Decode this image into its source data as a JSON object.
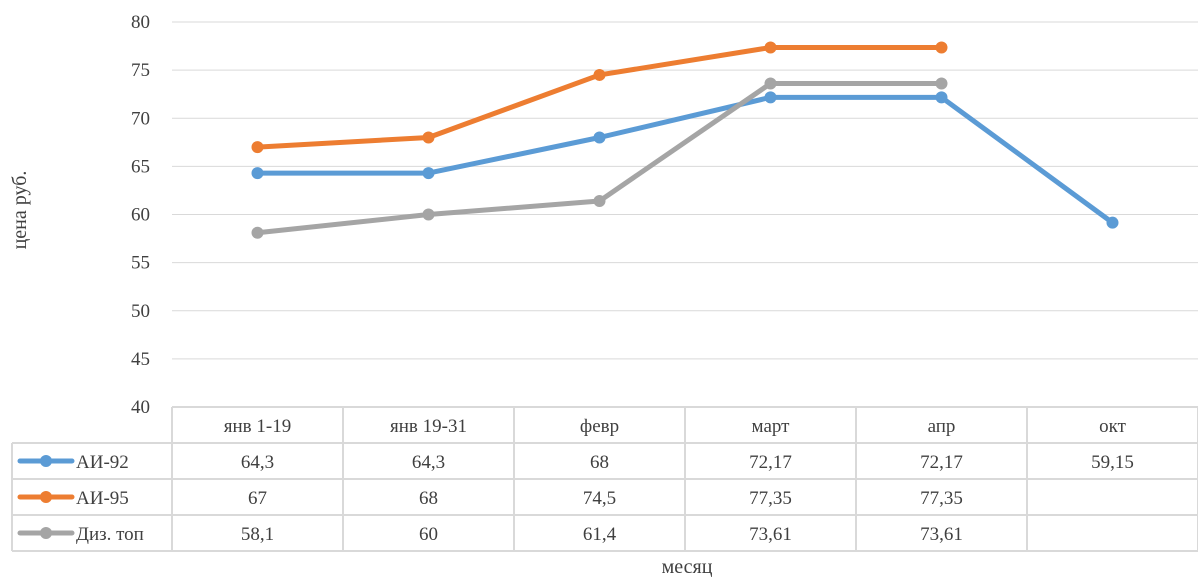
{
  "chart_data": {
    "type": "line",
    "title": "",
    "xlabel": "месяц",
    "ylabel": "цена руб.",
    "ylim": [
      40,
      80
    ],
    "ytick_step": 5,
    "grid": true,
    "data_table": true,
    "categories": [
      "янв 1-19",
      "янв 19-31",
      "февр",
      "март",
      "апр",
      "окт"
    ],
    "series": [
      {
        "name": "АИ-92",
        "color": "#5B9BD5",
        "values": [
          64.3,
          64.3,
          68,
          72.17,
          72.17,
          59.15
        ],
        "labels": [
          "64,3",
          "64,3",
          "68",
          "72,17",
          "72,17",
          "59,15"
        ]
      },
      {
        "name": "АИ-95",
        "color": "#ED7D31",
        "values": [
          67,
          68,
          74.5,
          77.35,
          77.35,
          null
        ],
        "labels": [
          "67",
          "68",
          "74,5",
          "77,35",
          "77,35",
          ""
        ]
      },
      {
        "name": "Диз. топ",
        "color": "#A5A5A5",
        "values": [
          58.1,
          60,
          61.4,
          73.61,
          73.61,
          null
        ],
        "labels": [
          "58,1",
          "60",
          "61,4",
          "73,61",
          "73,61",
          ""
        ]
      }
    ]
  }
}
